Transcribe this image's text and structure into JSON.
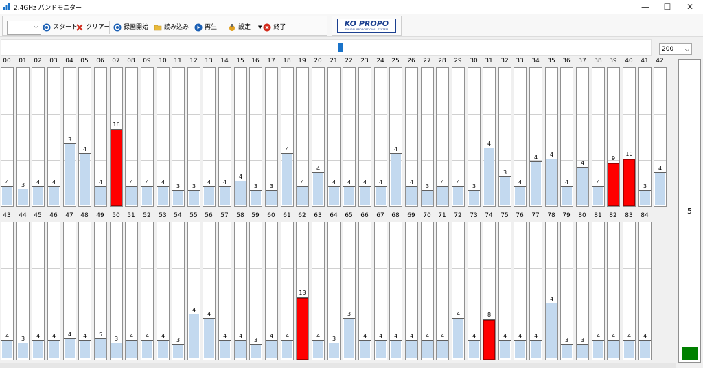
{
  "window": {
    "title": "2.4GHz バンドモニター",
    "controls": {
      "minimize": "—",
      "maximize": "☐",
      "close": "✕"
    }
  },
  "toolbar": {
    "combo_value": "",
    "start_label": "スタート",
    "clear_label": "クリアー",
    "record_label": "録画開始",
    "load_label": "読み込み",
    "play_label": "再生",
    "settings_label": "設定",
    "exit_label": "終了"
  },
  "logo": {
    "main": "KO PROPO",
    "sub": "DIGITAL PROPORTIONAL SYSTEM"
  },
  "scale_select": {
    "value": "200",
    "arrow": "⌵"
  },
  "combo_arrow": "⌵",
  "colors": {
    "low_bar": "#c3d9ef",
    "high_bar": "#ff0000",
    "indicator": "#008000"
  },
  "channels": [
    {
      "ch": "00",
      "value": 4
    },
    {
      "ch": "01",
      "value": 3
    },
    {
      "ch": "02",
      "value": 4
    },
    {
      "ch": "03",
      "value": 4
    },
    {
      "ch": "04",
      "value": 3
    },
    {
      "ch": "05",
      "value": 4
    },
    {
      "ch": "06",
      "value": 4
    },
    {
      "ch": "07",
      "value": 16
    },
    {
      "ch": "08",
      "value": 4
    },
    {
      "ch": "09",
      "value": 4
    },
    {
      "ch": "10",
      "value": 4
    },
    {
      "ch": "11",
      "value": 3
    },
    {
      "ch": "12",
      "value": 3
    },
    {
      "ch": "13",
      "value": 4
    },
    {
      "ch": "14",
      "value": 4
    },
    {
      "ch": "15",
      "value": 4
    },
    {
      "ch": "16",
      "value": 3
    },
    {
      "ch": "17",
      "value": 3
    },
    {
      "ch": "18",
      "value": 4
    },
    {
      "ch": "19",
      "value": 4
    },
    {
      "ch": "20",
      "value": 4
    },
    {
      "ch": "21",
      "value": 4
    },
    {
      "ch": "22",
      "value": 4
    },
    {
      "ch": "23",
      "value": 4
    },
    {
      "ch": "24",
      "value": 4
    },
    {
      "ch": "25",
      "value": 4
    },
    {
      "ch": "26",
      "value": 4
    },
    {
      "ch": "27",
      "value": 3
    },
    {
      "ch": "28",
      "value": 4
    },
    {
      "ch": "29",
      "value": 4
    },
    {
      "ch": "30",
      "value": 3
    },
    {
      "ch": "31",
      "value": 4
    },
    {
      "ch": "32",
      "value": 3
    },
    {
      "ch": "33",
      "value": 4
    },
    {
      "ch": "34",
      "value": 4
    },
    {
      "ch": "35",
      "value": 4
    },
    {
      "ch": "36",
      "value": 4
    },
    {
      "ch": "37",
      "value": 4
    },
    {
      "ch": "38",
      "value": 4
    },
    {
      "ch": "39",
      "value": 9
    },
    {
      "ch": "40",
      "value": 10
    },
    {
      "ch": "41",
      "value": 3
    },
    {
      "ch": "42",
      "value": 4
    },
    {
      "ch": "43",
      "value": 4
    },
    {
      "ch": "44",
      "value": 3
    },
    {
      "ch": "45",
      "value": 4
    },
    {
      "ch": "46",
      "value": 4
    },
    {
      "ch": "47",
      "value": 4
    },
    {
      "ch": "48",
      "value": 4
    },
    {
      "ch": "49",
      "value": 5
    },
    {
      "ch": "50",
      "value": 3
    },
    {
      "ch": "51",
      "value": 4
    },
    {
      "ch": "52",
      "value": 4
    },
    {
      "ch": "53",
      "value": 4
    },
    {
      "ch": "54",
      "value": 3
    },
    {
      "ch": "55",
      "value": 4
    },
    {
      "ch": "56",
      "value": 4
    },
    {
      "ch": "57",
      "value": 4
    },
    {
      "ch": "58",
      "value": 4
    },
    {
      "ch": "59",
      "value": 3
    },
    {
      "ch": "60",
      "value": 4
    },
    {
      "ch": "61",
      "value": 4
    },
    {
      "ch": "62",
      "value": 13
    },
    {
      "ch": "63",
      "value": 4
    },
    {
      "ch": "64",
      "value": 3
    },
    {
      "ch": "65",
      "value": 3
    },
    {
      "ch": "66",
      "value": 4
    },
    {
      "ch": "67",
      "value": 4
    },
    {
      "ch": "68",
      "value": 4
    },
    {
      "ch": "69",
      "value": 4
    },
    {
      "ch": "70",
      "value": 4
    },
    {
      "ch": "71",
      "value": 4
    },
    {
      "ch": "72",
      "value": 4
    },
    {
      "ch": "73",
      "value": 4
    },
    {
      "ch": "74",
      "value": 8
    },
    {
      "ch": "75",
      "value": 4
    },
    {
      "ch": "76",
      "value": 4
    },
    {
      "ch": "77",
      "value": 4
    },
    {
      "ch": "78",
      "value": 4
    },
    {
      "ch": "79",
      "value": 3
    },
    {
      "ch": "80",
      "value": 3
    },
    {
      "ch": "81",
      "value": 4
    },
    {
      "ch": "82",
      "value": 4
    },
    {
      "ch": "83",
      "value": 4
    },
    {
      "ch": "84",
      "value": 4
    }
  ],
  "fill_levels_pct": [
    13,
    11,
    13,
    13,
    44,
    37,
    13,
    54,
    13,
    13,
    13,
    10,
    10,
    13,
    13,
    17,
    10,
    10,
    37,
    13,
    23,
    13,
    13,
    13,
    13,
    37,
    13,
    10,
    13,
    13,
    10,
    41,
    20,
    13,
    31,
    33,
    13,
    27,
    13,
    30,
    33,
    10,
    23,
    13,
    11,
    13,
    13,
    14,
    13,
    14,
    11,
    13,
    13,
    13,
    10,
    32,
    29,
    13,
    13,
    10,
    13,
    13,
    44,
    13,
    11,
    29,
    13,
    13,
    13,
    13,
    13,
    13,
    29,
    13,
    28,
    13,
    13,
    13,
    40,
    10,
    10,
    13,
    13,
    13,
    13
  ],
  "right_panel": {
    "value": "5",
    "indicator_level": 0.04
  }
}
